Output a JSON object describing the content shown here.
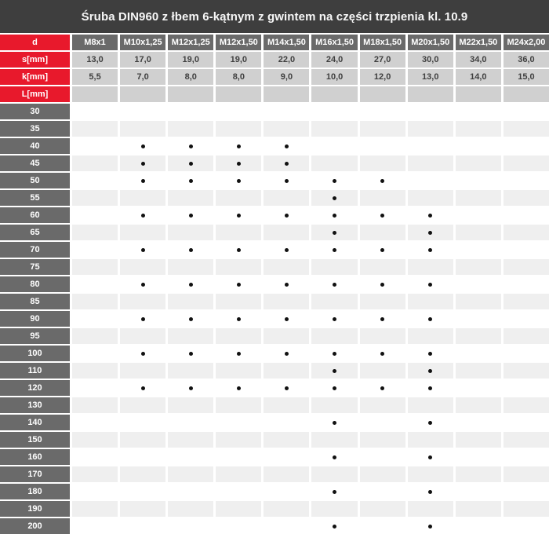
{
  "title": "Śruba DIN960 z łbem 6-kątnym z gwintem na części trzpienia kl. 10.9",
  "colors": {
    "title_bg": "#3e3e3e",
    "red": "#e8192c",
    "dark_gray": "#6a6a6a",
    "light_gray": "#d0d0d0",
    "zebra_gray": "#efefef",
    "dot": "#111111"
  },
  "table": {
    "corner_label": "d",
    "columns": [
      "M8x1",
      "M10x1,25",
      "M12x1,25",
      "M12x1,50",
      "M14x1,50",
      "M16x1,50",
      "M18x1,50",
      "M20x1,50",
      "M22x1,50",
      "M24x2,00"
    ],
    "spec_rows": [
      {
        "label": "s[mm]",
        "values": [
          "13,0",
          "17,0",
          "19,0",
          "19,0",
          "22,0",
          "24,0",
          "27,0",
          "30,0",
          "34,0",
          "36,0"
        ]
      },
      {
        "label": "k[mm]",
        "values": [
          "5,5",
          "7,0",
          "8,0",
          "8,0",
          "9,0",
          "10,0",
          "12,0",
          "13,0",
          "14,0",
          "15,0"
        ]
      }
    ],
    "length_header_label": "L[mm]",
    "dot_meaning": "available",
    "length_rows": [
      {
        "label": "30",
        "dots": []
      },
      {
        "label": "35",
        "dots": []
      },
      {
        "label": "40",
        "dots": [
          1,
          2,
          3,
          4
        ]
      },
      {
        "label": "45",
        "dots": [
          1,
          2,
          3,
          4
        ]
      },
      {
        "label": "50",
        "dots": [
          1,
          2,
          3,
          4,
          5,
          6
        ]
      },
      {
        "label": "55",
        "dots": [
          5
        ]
      },
      {
        "label": "60",
        "dots": [
          1,
          2,
          3,
          4,
          5,
          6,
          7
        ]
      },
      {
        "label": "65",
        "dots": [
          5,
          7
        ]
      },
      {
        "label": "70",
        "dots": [
          1,
          2,
          3,
          4,
          5,
          6,
          7
        ]
      },
      {
        "label": "75",
        "dots": []
      },
      {
        "label": "80",
        "dots": [
          1,
          2,
          3,
          4,
          5,
          6,
          7
        ]
      },
      {
        "label": "85",
        "dots": []
      },
      {
        "label": "90",
        "dots": [
          1,
          2,
          3,
          4,
          5,
          6,
          7
        ]
      },
      {
        "label": "95",
        "dots": []
      },
      {
        "label": "100",
        "dots": [
          1,
          2,
          3,
          4,
          5,
          6,
          7
        ]
      },
      {
        "label": "110",
        "dots": [
          5,
          7
        ]
      },
      {
        "label": "120",
        "dots": [
          1,
          2,
          3,
          4,
          5,
          6,
          7
        ]
      },
      {
        "label": "130",
        "dots": []
      },
      {
        "label": "140",
        "dots": [
          5,
          7
        ]
      },
      {
        "label": "150",
        "dots": []
      },
      {
        "label": "160",
        "dots": [
          5,
          7
        ]
      },
      {
        "label": "170",
        "dots": []
      },
      {
        "label": "180",
        "dots": [
          5,
          7
        ]
      },
      {
        "label": "190",
        "dots": []
      },
      {
        "label": "200",
        "dots": [
          5,
          7
        ]
      }
    ]
  }
}
